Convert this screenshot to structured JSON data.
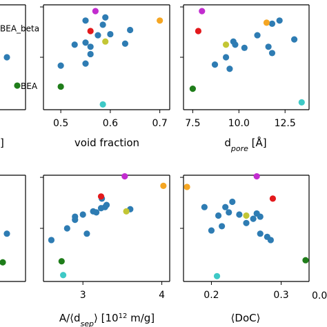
{
  "colors": {
    "blue": "#2e7cb3",
    "orange": "#f5a623",
    "magenta": "#c22ccf",
    "red": "#e3191c",
    "olive": "#c3c635",
    "green": "#1f7d1a",
    "cyan": "#3ec9c6"
  },
  "chart_data": [
    {
      "type": "scatter",
      "panel": "top-left-partial",
      "xlabel": "",
      "ylabel": "",
      "xticks": [],
      "xtick_labels": [],
      "series": [
        {
          "color": "blue",
          "points": [
            [
              0,
              0.5
            ]
          ]
        },
        {
          "color": "green",
          "points": [
            [
              0,
              0.77
            ]
          ]
        }
      ],
      "annotations": [
        {
          "text": "BEA_beta",
          "at": [
            0,
            0.22
          ]
        },
        {
          "text": "BEA",
          "at": [
            0,
            0.77
          ]
        }
      ]
    },
    {
      "type": "scatter",
      "panel": "top-middle",
      "xlabel": "void fraction",
      "xlim": [
        0.465,
        0.72
      ],
      "xticks": [
        0.5,
        0.6,
        0.7
      ],
      "xtick_labels": [
        "0.5",
        "0.6",
        "0.7"
      ],
      "series": [
        {
          "color": "blue",
          "points": [
            [
              0.55,
              0.15
            ],
            [
              0.528,
              0.38
            ],
            [
              0.55,
              0.36
            ],
            [
              0.56,
              0.4
            ],
            [
              0.56,
              0.47
            ],
            [
              0.575,
              0.29
            ],
            [
              0.6,
              0.28
            ],
            [
              0.63,
              0.37
            ],
            [
              0.64,
              0.24
            ],
            [
              0.59,
              0.12
            ],
            [
              0.55,
              0.56
            ],
            [
              0.5,
              0.58
            ],
            [
              0.585,
              0.19
            ]
          ]
        },
        {
          "color": "orange",
          "points": [
            [
              0.7,
              0.15
            ]
          ]
        },
        {
          "color": "magenta",
          "points": [
            [
              0.57,
              0.06
            ]
          ]
        },
        {
          "color": "red",
          "points": [
            [
              0.56,
              0.25
            ]
          ]
        },
        {
          "color": "olive",
          "points": [
            [
              0.59,
              0.35
            ]
          ]
        },
        {
          "color": "green",
          "points": [
            [
              0.5,
              0.78
            ]
          ]
        },
        {
          "color": "cyan",
          "points": [
            [
              0.585,
              0.95
            ]
          ]
        }
      ]
    },
    {
      "type": "scatter",
      "panel": "top-right",
      "xlabel": "d_pore [Å]",
      "xlim": [
        7.0,
        13.8
      ],
      "xticks": [
        7.5,
        10.0,
        12.5
      ],
      "xtick_labels": [
        "7.5",
        "10.0",
        "12.5"
      ],
      "series": [
        {
          "color": "blue",
          "points": [
            [
              9.7,
              0.35
            ],
            [
              10.3,
              0.41
            ],
            [
              11.0,
              0.29
            ],
            [
              11.8,
              0.18
            ],
            [
              12.2,
              0.15
            ],
            [
              11.6,
              0.4
            ],
            [
              11.8,
              0.46
            ],
            [
              13.0,
              0.33
            ],
            [
              9.3,
              0.5
            ],
            [
              8.7,
              0.57
            ],
            [
              9.8,
              0.38
            ],
            [
              9.5,
              0.61
            ]
          ]
        },
        {
          "color": "orange",
          "points": [
            [
              11.5,
              0.17
            ]
          ]
        },
        {
          "color": "magenta",
          "points": [
            [
              8.0,
              0.06
            ]
          ]
        },
        {
          "color": "red",
          "points": [
            [
              7.8,
              0.25
            ]
          ]
        },
        {
          "color": "olive",
          "points": [
            [
              9.3,
              0.38
            ]
          ]
        },
        {
          "color": "green",
          "points": [
            [
              7.5,
              0.8
            ]
          ]
        },
        {
          "color": "cyan",
          "points": [
            [
              13.4,
              0.93
            ]
          ]
        }
      ]
    },
    {
      "type": "scatter",
      "panel": "bottom-left-partial",
      "xlabel": "",
      "ylabel": "",
      "series": [
        {
          "color": "blue",
          "points": [
            [
              0,
              0.55
            ]
          ]
        },
        {
          "color": "green",
          "points": [
            [
              0,
              0.82
            ]
          ]
        }
      ]
    },
    {
      "type": "scatter",
      "panel": "bottom-middle",
      "xlabel": "A/⟨d_sep⟩ [10^12 m/g]",
      "xlim": [
        2.5,
        4.1
      ],
      "xticks": [
        3,
        4
      ],
      "xtick_labels": [
        "3",
        "4"
      ],
      "series": [
        {
          "color": "blue",
          "points": [
            [
              2.6,
              0.61
            ],
            [
              2.8,
              0.5
            ],
            [
              2.9,
              0.42
            ],
            [
              2.9,
              0.39
            ],
            [
              3.0,
              0.37
            ],
            [
              3.05,
              0.55
            ],
            [
              3.13,
              0.34
            ],
            [
              3.17,
              0.35
            ],
            [
              3.23,
              0.31
            ],
            [
              3.28,
              0.3
            ],
            [
              3.3,
              0.28
            ],
            [
              3.6,
              0.32
            ],
            [
              3.24,
              0.22
            ]
          ]
        },
        {
          "color": "orange",
          "points": [
            [
              4.02,
              0.1
            ]
          ]
        },
        {
          "color": "magenta",
          "points": [
            [
              3.53,
              0.01
            ]
          ]
        },
        {
          "color": "red",
          "points": [
            [
              3.23,
              0.2
            ]
          ]
        },
        {
          "color": "olive",
          "points": [
            [
              3.55,
              0.34
            ]
          ]
        },
        {
          "color": "green",
          "points": [
            [
              2.73,
              0.81
            ]
          ]
        },
        {
          "color": "cyan",
          "points": [
            [
              2.75,
              0.94
            ]
          ]
        }
      ]
    },
    {
      "type": "scatter",
      "panel": "bottom-right",
      "xlabel": "⟨DoC⟩",
      "xlim": [
        0.16,
        0.34
      ],
      "xticks": [
        0.2,
        0.3
      ],
      "xtick_labels": [
        "0.2",
        "0.3"
      ],
      "series": [
        {
          "color": "blue",
          "points": [
            [
              0.19,
              0.3
            ],
            [
              0.21,
              0.38
            ],
            [
              0.22,
              0.3
            ],
            [
              0.225,
              0.35
            ],
            [
              0.23,
              0.25
            ],
            [
              0.24,
              0.37
            ],
            [
              0.25,
              0.45
            ],
            [
              0.26,
              0.41
            ],
            [
              0.265,
              0.36
            ],
            [
              0.27,
              0.39
            ],
            [
              0.28,
              0.58
            ],
            [
              0.285,
              0.61
            ],
            [
              0.27,
              0.55
            ],
            [
              0.2,
              0.52
            ],
            [
              0.215,
              0.48
            ]
          ]
        },
        {
          "color": "orange",
          "points": [
            [
              0.165,
              0.11
            ]
          ]
        },
        {
          "color": "magenta",
          "points": [
            [
              0.265,
              0.01
            ]
          ]
        },
        {
          "color": "red",
          "points": [
            [
              0.288,
              0.22
            ]
          ]
        },
        {
          "color": "olive",
          "points": [
            [
              0.25,
              0.38
            ]
          ]
        },
        {
          "color": "green",
          "points": [
            [
              0.335,
              0.8
            ]
          ]
        },
        {
          "color": "cyan",
          "points": [
            [
              0.208,
              0.95
            ]
          ]
        }
      ]
    },
    {
      "type": "scatter",
      "panel": "bottom-far-right-partial",
      "xtick_labels": [
        "0.0"
      ]
    }
  ]
}
